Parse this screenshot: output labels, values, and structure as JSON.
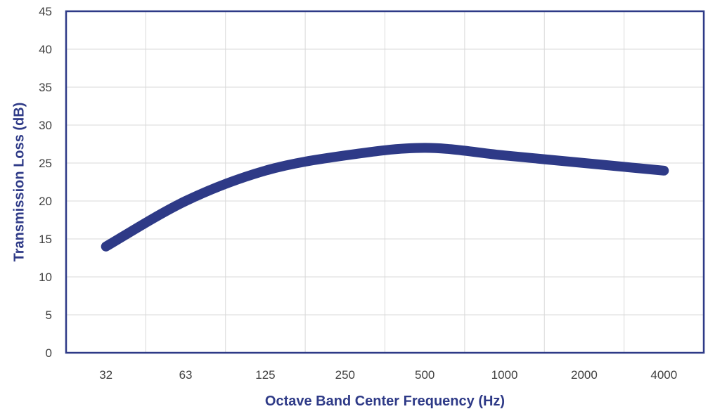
{
  "chart_data": {
    "type": "line",
    "categories": [
      "32",
      "63",
      "125",
      "250",
      "500",
      "1000",
      "2000",
      "4000"
    ],
    "series": [
      {
        "values": [
          14,
          20,
          24,
          26,
          27,
          26,
          25,
          24
        ]
      }
    ],
    "xlabel": "Octave Band Center Frequency (Hz)",
    "ylabel": "Transmission Loss (dB)",
    "ylim": [
      0,
      45
    ],
    "yticks": [
      "0",
      "5",
      "10",
      "15",
      "20",
      "25",
      "30",
      "35",
      "40",
      "45"
    ],
    "grid": true,
    "smooth": true,
    "line_color": "#2E3A87",
    "border_color": "#2E3A87",
    "axis_title_color": "#2E3A87",
    "grid_color": "#D9D9D9"
  }
}
